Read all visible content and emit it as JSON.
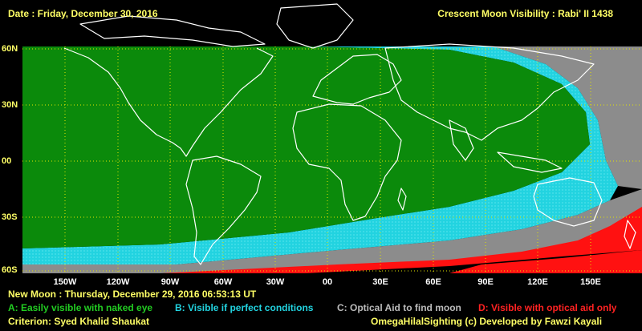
{
  "header": {
    "date_label": "Date : Friday, December 30, 2016",
    "visibility_title": "Crescent Moon Visibility : Rabi' II  1438"
  },
  "map": {
    "lat_labels": [
      "60N",
      "30N",
      "00",
      "30S",
      "60S"
    ],
    "lon_labels": [
      "150W",
      "120W",
      "90W",
      "60W",
      "30W",
      "00",
      "30E",
      "60E",
      "90E",
      "120E",
      "150E"
    ],
    "colors": {
      "zone_a": "#0b8a0b",
      "zone_b": "#22d3e0",
      "zone_c": "#8c8c8c",
      "zone_d": "#ff1111",
      "coast": "#ffffff",
      "grid": "#e5e500"
    }
  },
  "footer": {
    "new_moon": "New Moon : Thursday, December 29, 2016  06:53:13  UT",
    "legend": {
      "a": "A: Easily visible with naked eye",
      "b": "B: Visible if perfect conditions",
      "c": "C: Optical Aid to find moon",
      "d": "D: Visible with optical aid only"
    },
    "criterion": "Criterion: Syed Khalid Shaukat",
    "credit": "OmegaHilalSighting  (c)  Developed by Fawzi Kayali"
  }
}
